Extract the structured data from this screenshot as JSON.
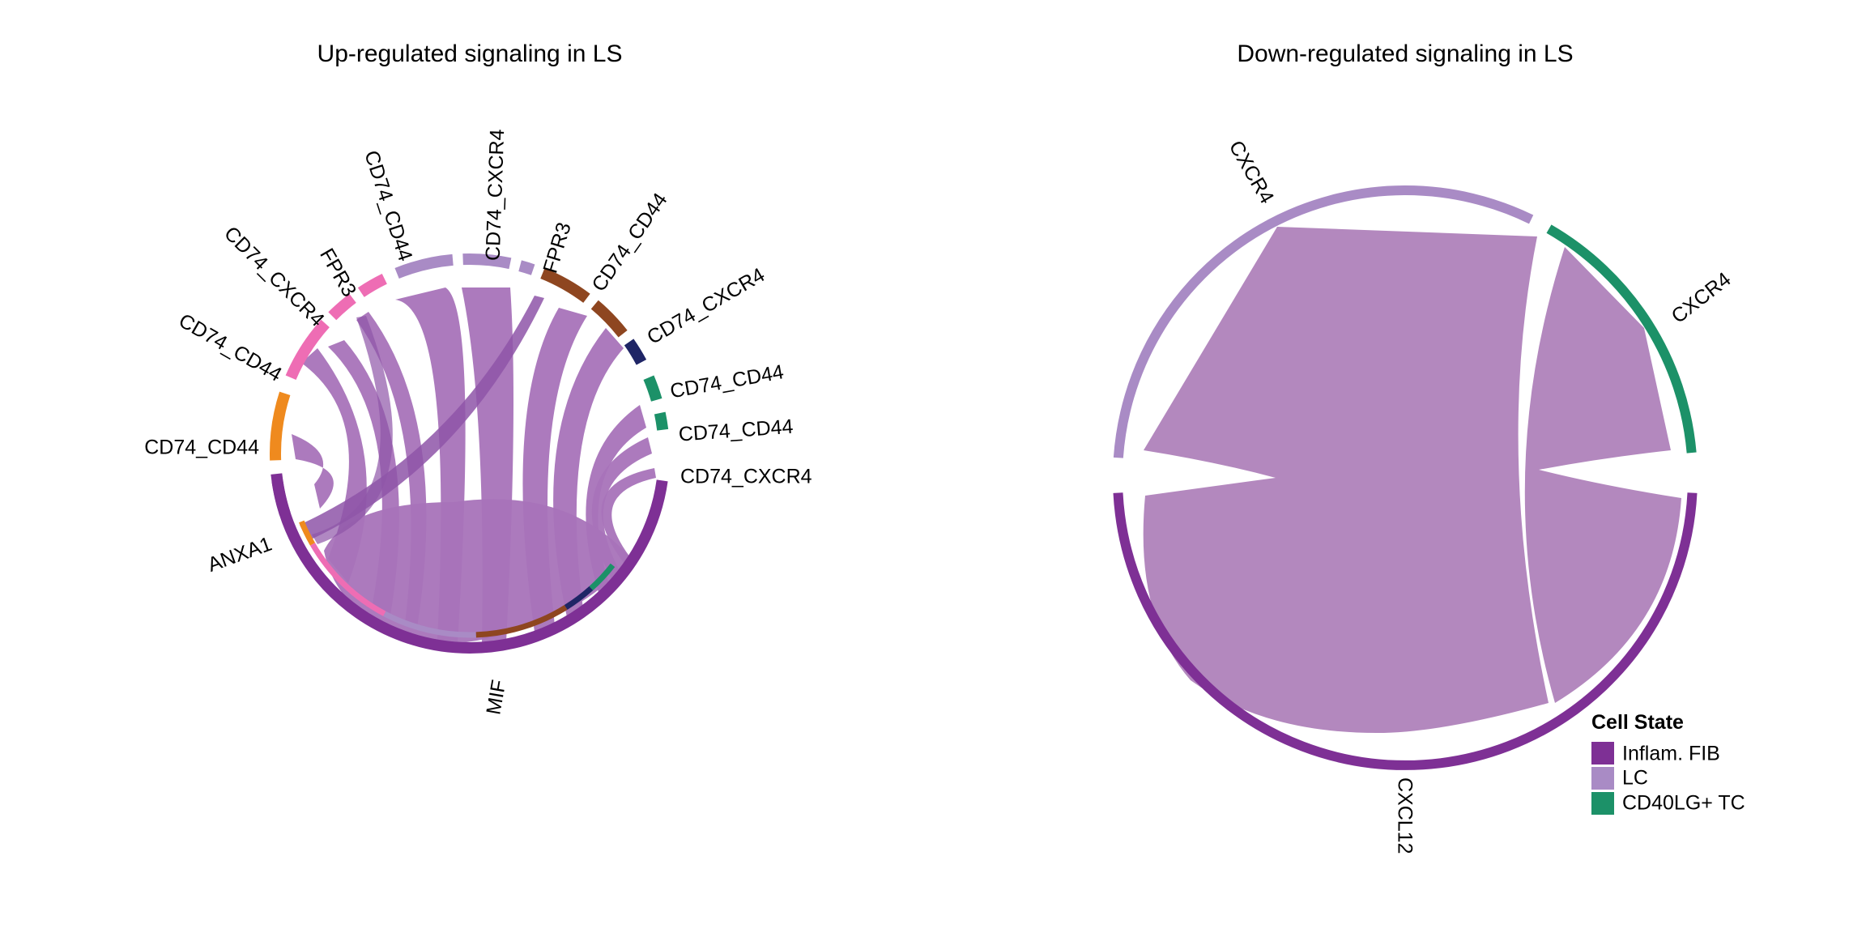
{
  "colors": {
    "inflam_fib": "#7E3095",
    "lc": "#A98BC5",
    "cd40lg_tc": "#1C9168",
    "pink": "#EE6DB4",
    "orange": "#EF8A1E",
    "brown": "#8E4620",
    "navy": "#1F2566",
    "teal": "#1C9168",
    "chord": "#A873B9"
  },
  "chart_data": [
    {
      "type": "chord",
      "title": "Up-regulated signaling in LS",
      "segments": [
        {
          "label": "MIF",
          "color": "#7E3095"
        },
        {
          "label": "ANXA1",
          "color": "#7E3095"
        },
        {
          "label": "CD74_CD44",
          "color": "#EF8A1E"
        },
        {
          "label": "CD74_CD44",
          "color": "#EE6DB4"
        },
        {
          "label": "CD74_CXCR4",
          "color": "#EE6DB4"
        },
        {
          "label": "FPR3",
          "color": "#EE6DB4"
        },
        {
          "label": "CD74_CD44",
          "color": "#A98BC5"
        },
        {
          "label": "CD74_CXCR4",
          "color": "#A98BC5"
        },
        {
          "label": "FPR3",
          "color": "#A98BC5"
        },
        {
          "label": "CD74_CD44",
          "color": "#8E4620"
        },
        {
          "label": "CD74_CXCR4",
          "color": "#8E4620"
        },
        {
          "label": "CD74_CD44",
          "color": "#1F2566"
        },
        {
          "label": "CD74_CD44",
          "color": "#1C9168"
        },
        {
          "label": "CD74_CXCR4",
          "color": "#1C9168"
        }
      ]
    },
    {
      "type": "chord",
      "title": "Down-regulated signaling in LS",
      "segments": [
        {
          "label": "CXCL12",
          "color": "#7E3095"
        },
        {
          "label": "CXCR4",
          "color": "#A98BC5"
        },
        {
          "label": "CXCR4",
          "color": "#1C9168"
        }
      ]
    }
  ],
  "legend": {
    "title": "Cell State",
    "items": [
      {
        "label": "Inflam. FIB",
        "color": "#7E3095"
      },
      {
        "label": "LC",
        "color": "#A98BC5"
      },
      {
        "label": "CD40LG+ TC",
        "color": "#1C9168"
      }
    ]
  }
}
